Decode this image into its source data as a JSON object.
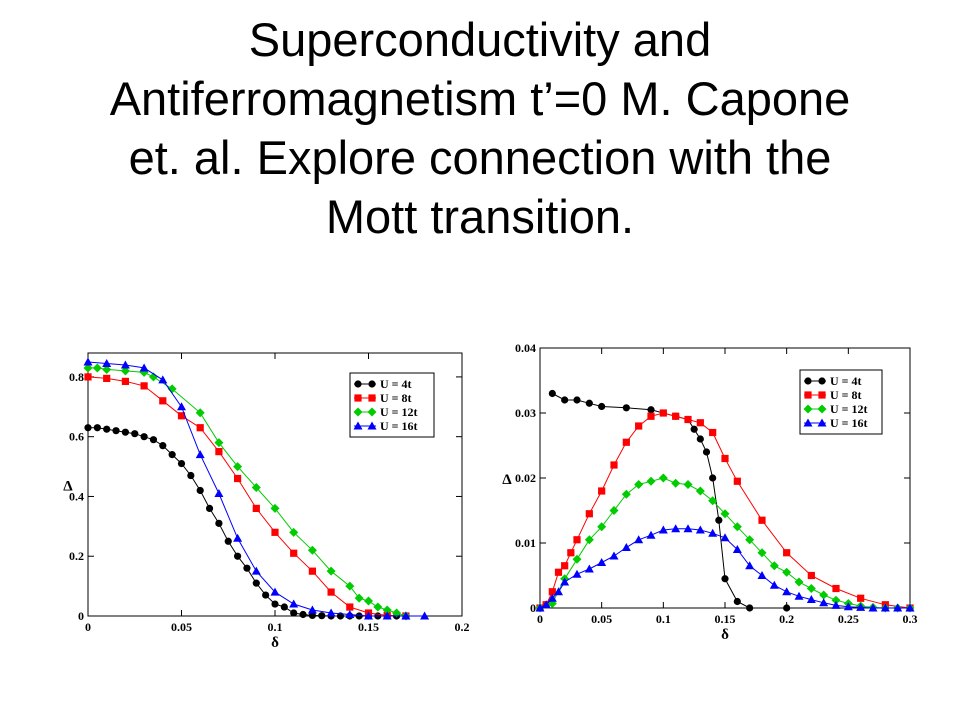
{
  "slide": {
    "title_lines": [
      "Superconductivity and",
      "Antiferromagnetism t’=0 M. Capone",
      "et. al. Explore connection with  the",
      "Mott transition."
    ]
  },
  "chart_data": [
    {
      "type": "line",
      "title": "",
      "xlabel": "δ",
      "ylabel": "Δ",
      "xlim": [
        0,
        0.2
      ],
      "ylim": [
        0,
        0.88
      ],
      "xticks": [
        0,
        0.05,
        0.1,
        0.15,
        0.2
      ],
      "xtick_labels": [
        "0",
        "0.05",
        "0.1",
        "0.15",
        "0.2"
      ],
      "yticks": [
        0,
        0.2,
        0.4,
        0.6,
        0.8
      ],
      "ytick_labels": [
        "0",
        "0.2",
        "0.4",
        "0.6",
        "0.8"
      ],
      "grid": false,
      "legend_position": "top-right",
      "series": [
        {
          "name": "U = 4t",
          "color": "#000000",
          "marker": "circle",
          "x": [
            0,
            0.005,
            0.01,
            0.015,
            0.02,
            0.025,
            0.03,
            0.035,
            0.04,
            0.045,
            0.05,
            0.055,
            0.06,
            0.065,
            0.07,
            0.075,
            0.08,
            0.085,
            0.09,
            0.095,
            0.1,
            0.105,
            0.11,
            0.115,
            0.12,
            0.125,
            0.13,
            0.135,
            0.14,
            0.145,
            0.15,
            0.155,
            0.16,
            0.165
          ],
          "y": [
            0.63,
            0.63,
            0.625,
            0.62,
            0.615,
            0.61,
            0.6,
            0.59,
            0.57,
            0.54,
            0.51,
            0.47,
            0.42,
            0.36,
            0.31,
            0.25,
            0.2,
            0.16,
            0.11,
            0.07,
            0.04,
            0.03,
            0.01,
            0.005,
            0.002,
            0.001,
            0,
            0,
            0,
            0,
            0,
            0,
            0,
            0
          ]
        },
        {
          "name": "U = 8t",
          "color": "#ff0000",
          "marker": "square",
          "x": [
            0,
            0.01,
            0.02,
            0.03,
            0.04,
            0.05,
            0.06,
            0.07,
            0.08,
            0.09,
            0.1,
            0.11,
            0.12,
            0.13,
            0.14,
            0.15,
            0.16,
            0.17
          ],
          "y": [
            0.8,
            0.795,
            0.785,
            0.77,
            0.72,
            0.67,
            0.63,
            0.55,
            0.46,
            0.36,
            0.28,
            0.21,
            0.15,
            0.08,
            0.03,
            0.01,
            0.002,
            0
          ]
        },
        {
          "name": "U = 12t",
          "color": "#00cc00",
          "marker": "diamond",
          "x": [
            0,
            0.005,
            0.01,
            0.02,
            0.03,
            0.035,
            0.045,
            0.06,
            0.07,
            0.08,
            0.09,
            0.1,
            0.11,
            0.12,
            0.13,
            0.14,
            0.145,
            0.15,
            0.155,
            0.16,
            0.165,
            0.17
          ],
          "y": [
            0.83,
            0.83,
            0.825,
            0.82,
            0.815,
            0.8,
            0.76,
            0.68,
            0.58,
            0.5,
            0.43,
            0.36,
            0.28,
            0.22,
            0.15,
            0.1,
            0.06,
            0.05,
            0.03,
            0.02,
            0.01,
            0
          ]
        },
        {
          "name": "U = 16t",
          "color": "#0000ff",
          "marker": "triangle",
          "x": [
            0,
            0.01,
            0.02,
            0.03,
            0.04,
            0.05,
            0.06,
            0.07,
            0.08,
            0.09,
            0.1,
            0.11,
            0.12,
            0.13,
            0.14,
            0.15,
            0.16,
            0.17,
            0.18
          ],
          "y": [
            0.85,
            0.845,
            0.84,
            0.83,
            0.79,
            0.7,
            0.54,
            0.41,
            0.26,
            0.15,
            0.08,
            0.04,
            0.02,
            0.01,
            0.005,
            0,
            0,
            0,
            0
          ]
        }
      ]
    },
    {
      "type": "line",
      "title": "",
      "xlabel": "δ",
      "ylabel": "Δ",
      "xlim": [
        0,
        0.3
      ],
      "ylim": [
        0,
        0.04
      ],
      "xticks": [
        0,
        0.05,
        0.1,
        0.15,
        0.2,
        0.25,
        0.3
      ],
      "xtick_labels": [
        "0",
        "0.05",
        "0.1",
        "0.15",
        "0.2",
        "0.25",
        "0.3"
      ],
      "yticks": [
        0,
        0.01,
        0.02,
        0.03,
        0.04
      ],
      "ytick_labels": [
        "0",
        "0.01",
        "0.02",
        "0.03",
        "0.04"
      ],
      "grid": false,
      "legend_position": "top-right",
      "series": [
        {
          "name": "U = 4t",
          "color": "#000000",
          "marker": "circle",
          "x": [
            0.01,
            0.02,
            0.03,
            0.04,
            0.05,
            0.07,
            0.09,
            0.11,
            0.12,
            0.125,
            0.13,
            0.135,
            0.14,
            0.145,
            0.15,
            0.16,
            0.17,
            0.2,
            0.3
          ],
          "y": [
            0.033,
            0.032,
            0.032,
            0.0315,
            0.031,
            0.0308,
            0.0305,
            0.0295,
            0.029,
            0.0275,
            0.026,
            0.024,
            0.02,
            0.0135,
            0.0045,
            0.001,
            0,
            0,
            0
          ]
        },
        {
          "name": "U = 8t",
          "color": "#ff0000",
          "marker": "square",
          "x": [
            0,
            0.005,
            0.01,
            0.015,
            0.02,
            0.025,
            0.03,
            0.04,
            0.05,
            0.06,
            0.07,
            0.08,
            0.09,
            0.1,
            0.11,
            0.12,
            0.13,
            0.14,
            0.15,
            0.16,
            0.18,
            0.2,
            0.22,
            0.24,
            0.26,
            0.28,
            0.3
          ],
          "y": [
            0,
            0.0005,
            0.0025,
            0.0055,
            0.0065,
            0.0085,
            0.0105,
            0.0145,
            0.018,
            0.022,
            0.0255,
            0.028,
            0.0295,
            0.03,
            0.0295,
            0.029,
            0.0285,
            0.027,
            0.023,
            0.0195,
            0.0135,
            0.0085,
            0.005,
            0.003,
            0.0015,
            0.0005,
            0
          ]
        },
        {
          "name": "U = 12t",
          "color": "#00cc00",
          "marker": "diamond",
          "x": [
            0,
            0.01,
            0.02,
            0.03,
            0.04,
            0.05,
            0.06,
            0.07,
            0.08,
            0.09,
            0.1,
            0.11,
            0.12,
            0.13,
            0.14,
            0.15,
            0.16,
            0.17,
            0.18,
            0.19,
            0.2,
            0.21,
            0.22,
            0.23,
            0.24,
            0.25,
            0.26,
            0.27,
            0.28,
            0.29,
            0.3
          ],
          "y": [
            0,
            0.0007,
            0.0045,
            0.0075,
            0.0105,
            0.0125,
            0.015,
            0.0175,
            0.019,
            0.0195,
            0.02,
            0.0192,
            0.019,
            0.018,
            0.0165,
            0.0145,
            0.0125,
            0.0105,
            0.0085,
            0.0065,
            0.0055,
            0.004,
            0.003,
            0.002,
            0.0012,
            0.0007,
            0.0003,
            0.0001,
            0,
            0,
            0
          ]
        },
        {
          "name": "U = 16t",
          "color": "#0000ff",
          "marker": "triangle",
          "x": [
            0,
            0.005,
            0.01,
            0.015,
            0.02,
            0.03,
            0.04,
            0.05,
            0.06,
            0.07,
            0.08,
            0.09,
            0.1,
            0.11,
            0.12,
            0.13,
            0.14,
            0.15,
            0.16,
            0.17,
            0.18,
            0.19,
            0.2,
            0.21,
            0.22,
            0.23,
            0.24,
            0.25,
            0.26,
            0.27,
            0.28,
            0.29,
            0.3
          ],
          "y": [
            0,
            0.0005,
            0.0015,
            0.0025,
            0.004,
            0.0052,
            0.006,
            0.007,
            0.008,
            0.0093,
            0.0105,
            0.0112,
            0.012,
            0.0122,
            0.0122,
            0.012,
            0.0115,
            0.0108,
            0.009,
            0.0065,
            0.005,
            0.0035,
            0.0025,
            0.0018,
            0.0013,
            0.0008,
            0.0004,
            0.0002,
            0.0001,
            0,
            0,
            0,
            0
          ]
        }
      ]
    }
  ]
}
